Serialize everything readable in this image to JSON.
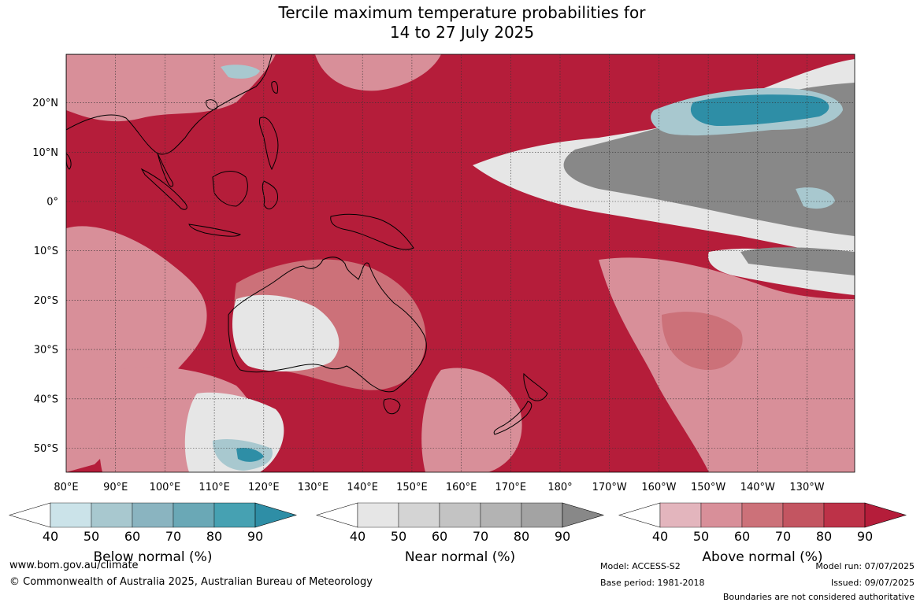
{
  "title": {
    "line1": "Tercile maximum temperature probabilities for",
    "line2": "14 to 27 July 2025"
  },
  "lat_labels": [
    "20°N",
    "10°N",
    "0°",
    "10°S",
    "20°S",
    "30°S",
    "40°S",
    "50°S"
  ],
  "lon_labels": [
    "80°E",
    "90°E",
    "100°E",
    "110°E",
    "120°E",
    "130°E",
    "140°E",
    "150°E",
    "160°E",
    "170°E",
    "180°",
    "170°W",
    "160°W",
    "150°W",
    "140°W",
    "130°W"
  ],
  "colorbars": [
    {
      "title": "Below normal (%)",
      "ticks": [
        "40",
        "50",
        "60",
        "70",
        "80",
        "90"
      ],
      "colors": [
        "#cbe3e9",
        "#a8c8cf",
        "#8ab4c0",
        "#6aa8b6",
        "#46a1b2",
        "#2e8ea6"
      ]
    },
    {
      "title": "Near normal (%)",
      "ticks": [
        "40",
        "50",
        "60",
        "70",
        "80",
        "90"
      ],
      "colors": [
        "#e6e6e6",
        "#d4d4d4",
        "#c3c3c3",
        "#b3b3b3",
        "#a3a3a3",
        "#888888"
      ]
    },
    {
      "title": "Above normal (%)",
      "ticks": [
        "40",
        "50",
        "60",
        "70",
        "80",
        "90"
      ],
      "colors": [
        "#e3b5bd",
        "#d88f99",
        "#cc7179",
        "#c35561",
        "#bd3248",
        "#b51d3a"
      ]
    }
  ],
  "map_colors": {
    "sea_base": "#b51d3a",
    "above_light": "#d88f99",
    "above_mid": "#cc7179",
    "above_dark": "#c35561",
    "near_light": "#e6e6e6",
    "near_mid": "#c3c3c3",
    "near_dark": "#888888",
    "below_light": "#a8c8cf",
    "below_dark": "#2e8ea6",
    "grid": "#333333",
    "coast": "#000000"
  },
  "footer": {
    "url": "www.bom.gov.au/climate",
    "copyright": "© Commonwealth of Australia 2025, Australian Bureau of Meteorology",
    "model": "Model: ACCESS-S2",
    "base_period": "Base period: 1981-2018",
    "model_run": "Model run: 07/07/2025",
    "issued": "Issued: 09/07/2025",
    "disclaimer": "Boundaries are not considered authoritative"
  }
}
